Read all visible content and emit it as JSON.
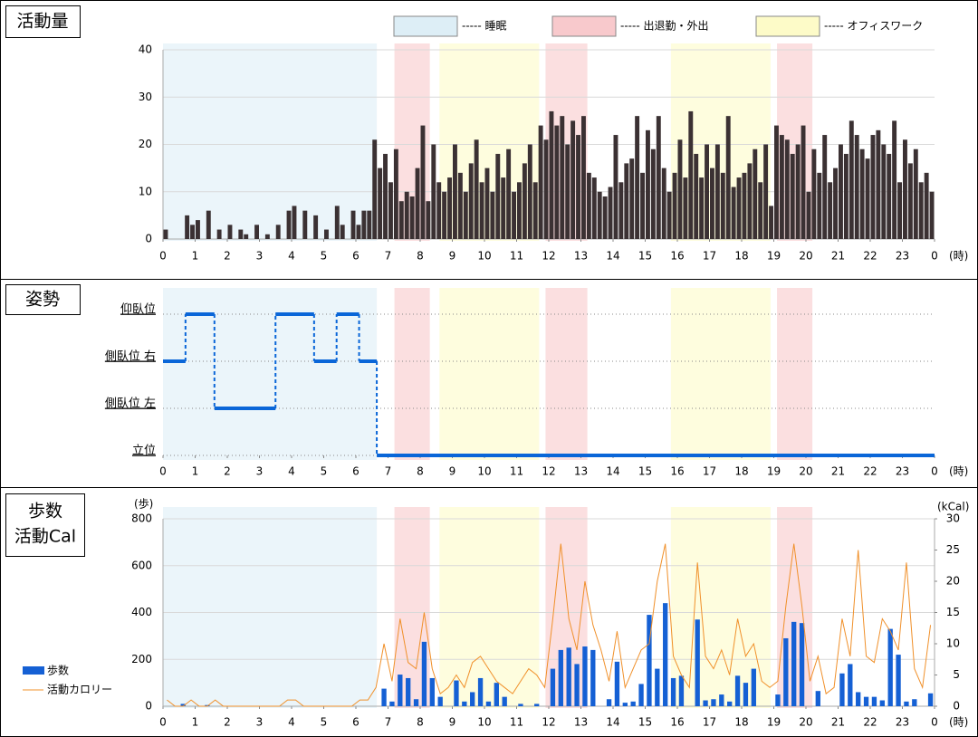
{
  "chart_data": [
    {
      "type": "bar",
      "title": "活動量",
      "color": "#3b3133",
      "xlim": [
        0,
        24
      ],
      "xticks": [
        0,
        1,
        2,
        3,
        4,
        5,
        6,
        7,
        8,
        9,
        10,
        11,
        12,
        13,
        14,
        15,
        16,
        17,
        18,
        19,
        20,
        21,
        22,
        23,
        {
          "value": 24,
          "label": "0"
        }
      ],
      "xlabel": "(時)",
      "ylim": [
        0,
        40
      ],
      "yticks": [
        0,
        10,
        20,
        30,
        40
      ],
      "grid": true,
      "bands": [
        {
          "name": "----- 睡眠",
          "color": "#ddeef6",
          "ranges": [
            [
              0,
              6.65
            ]
          ]
        },
        {
          "name": "----- 出退勤・外出",
          "color": "#f8c9cc",
          "ranges": [
            [
              7.2,
              8.3
            ],
            [
              11.9,
              13.2
            ],
            [
              19.1,
              20.2
            ]
          ]
        },
        {
          "name": "----- オフィスワーク",
          "color": "#fdfbc8",
          "ranges": [
            [
              8.6,
              11.7
            ],
            [
              15.8,
              18.9
            ]
          ]
        }
      ],
      "values": [
        2,
        0,
        0,
        0,
        5,
        3,
        4,
        0,
        6,
        0,
        2,
        0,
        3,
        0,
        2,
        1,
        0,
        3,
        0,
        1,
        0,
        3,
        0,
        6,
        7,
        0,
        6,
        0,
        5,
        0,
        2,
        0,
        7,
        3,
        0,
        6,
        3,
        6,
        6,
        21,
        15,
        18,
        12,
        19,
        8,
        10,
        9,
        15,
        24,
        8,
        20,
        12,
        10,
        13,
        20,
        14,
        10,
        16,
        21,
        12,
        15,
        10,
        18,
        13,
        19,
        10,
        12,
        16,
        20,
        12,
        24,
        21,
        27,
        24,
        26,
        20,
        25,
        22,
        26,
        14,
        13,
        10,
        9,
        11,
        22,
        12,
        16,
        17,
        26,
        14,
        23,
        19,
        26,
        15,
        10,
        14,
        21,
        13,
        27,
        18,
        13,
        20,
        15,
        20,
        14,
        26,
        11,
        13,
        14,
        16,
        19,
        12,
        20,
        7,
        24,
        22,
        21,
        18,
        20,
        24,
        10,
        19,
        14,
        22,
        12,
        15,
        20,
        18,
        25,
        22,
        19,
        17,
        22,
        23,
        20,
        18,
        25,
        12,
        21,
        16,
        19,
        12,
        14,
        10
      ]
    },
    {
      "type": "step",
      "title": "姿勢",
      "color": "#0a66d8",
      "xlim": [
        0,
        24
      ],
      "xticks": [
        0,
        1,
        2,
        3,
        4,
        5,
        6,
        7,
        8,
        9,
        10,
        11,
        12,
        13,
        14,
        15,
        16,
        17,
        18,
        19,
        20,
        21,
        22,
        23,
        {
          "value": 24,
          "label": "0"
        }
      ],
      "xlabel": "(時)",
      "categories": [
        "立位",
        "側臥位  左",
        "側臥位  右",
        "仰臥位"
      ],
      "x": [
        0,
        0.7,
        1.6,
        3.5,
        4.7,
        5.4,
        6.1,
        6.65
      ],
      "values": [
        2,
        3,
        1,
        3,
        2,
        3,
        2,
        0
      ]
    },
    {
      "type": "bar_line",
      "title": [
        "歩数",
        "活動Cal"
      ],
      "xlim": [
        0,
        24
      ],
      "xticks": [
        0,
        1,
        2,
        3,
        4,
        5,
        6,
        7,
        8,
        9,
        10,
        11,
        12,
        13,
        14,
        15,
        16,
        17,
        18,
        19,
        20,
        21,
        22,
        23,
        {
          "value": 24,
          "label": "0"
        }
      ],
      "xlabel": "(時)",
      "ylim": [
        0,
        800
      ],
      "yticks": [
        0,
        200,
        400,
        600,
        800
      ],
      "ylabel": "(歩)",
      "y2lim": [
        0,
        30
      ],
      "y2ticks": [
        0,
        5,
        10,
        15,
        20,
        25,
        30
      ],
      "y2label": "(kCal)",
      "grid": true,
      "series": [
        {
          "name": "歩数",
          "color": "#1560d4",
          "values": [
            0,
            0,
            10,
            0,
            0,
            5,
            0,
            0,
            0,
            0,
            0,
            0,
            0,
            0,
            0,
            0,
            0,
            0,
            0,
            0,
            0,
            0,
            0,
            0,
            0,
            0,
            0,
            75,
            20,
            135,
            120,
            30,
            275,
            120,
            40,
            0,
            110,
            20,
            60,
            120,
            20,
            100,
            40,
            0,
            10,
            0,
            10,
            0,
            160,
            240,
            250,
            180,
            255,
            240,
            0,
            30,
            190,
            15,
            20,
            95,
            390,
            160,
            440,
            120,
            130,
            0,
            370,
            25,
            30,
            50,
            20,
            130,
            100,
            160,
            0,
            0,
            50,
            290,
            360,
            355,
            0,
            65,
            0,
            0,
            140,
            180,
            60,
            40,
            40,
            25,
            330,
            220,
            20,
            30,
            0,
            55
          ]
        },
        {
          "name": "活動カロリー",
          "color": "#f0902a",
          "axis": "y2",
          "values": [
            1,
            0,
            0,
            1,
            0,
            0,
            1,
            0,
            0,
            0,
            0,
            0,
            0,
            0,
            0,
            1,
            1,
            0,
            0,
            0,
            0,
            0,
            0,
            0,
            1,
            1,
            3,
            10,
            4,
            14,
            7,
            6,
            15,
            6,
            2,
            3,
            5,
            3,
            7,
            8,
            6,
            4,
            3,
            2,
            4,
            6,
            5,
            3,
            14,
            26,
            14,
            9,
            20,
            13,
            9,
            4,
            12,
            3,
            6,
            9,
            10,
            20,
            26,
            8,
            5,
            3,
            23,
            8,
            6,
            9,
            5,
            14,
            8,
            10,
            4,
            3,
            4,
            16,
            26,
            16,
            4,
            8,
            2,
            3,
            14,
            8,
            25,
            8,
            7,
            14,
            12,
            9,
            23,
            6,
            3,
            13
          ]
        }
      ]
    }
  ]
}
